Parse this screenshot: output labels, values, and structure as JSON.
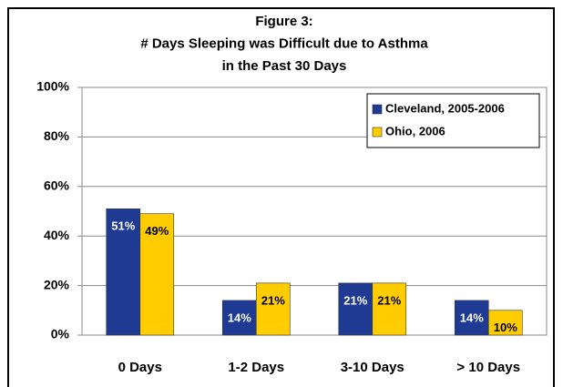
{
  "chart_data": {
    "type": "bar",
    "title": [
      "Figure 3:",
      "# Days Sleeping was Difficult due to Asthma",
      "in the Past 30 Days"
    ],
    "categories": [
      "0 Days",
      "1-2 Days",
      "3-10 Days",
      "> 10 Days"
    ],
    "series": [
      {
        "name": "Cleveland, 2005-2006",
        "color": "#1f3a93",
        "values": [
          51,
          14,
          21,
          14
        ],
        "value_labels": [
          "51%",
          "14%",
          "21%",
          "14%"
        ]
      },
      {
        "name": "Ohio, 2006",
        "color": "#ffcc00",
        "values": [
          49,
          21,
          21,
          10
        ],
        "value_labels": [
          "49%",
          "21%",
          "21%",
          "10%"
        ]
      }
    ],
    "ylim": [
      0,
      100
    ],
    "yticks": [
      {
        "value": 0,
        "label": "0%"
      },
      {
        "value": 20,
        "label": "20%"
      },
      {
        "value": 40,
        "label": "40%"
      },
      {
        "value": 60,
        "label": "60%"
      },
      {
        "value": 80,
        "label": "80%"
      },
      {
        "value": 100,
        "label": "100%"
      }
    ],
    "grid": true,
    "legend": "upper right"
  }
}
